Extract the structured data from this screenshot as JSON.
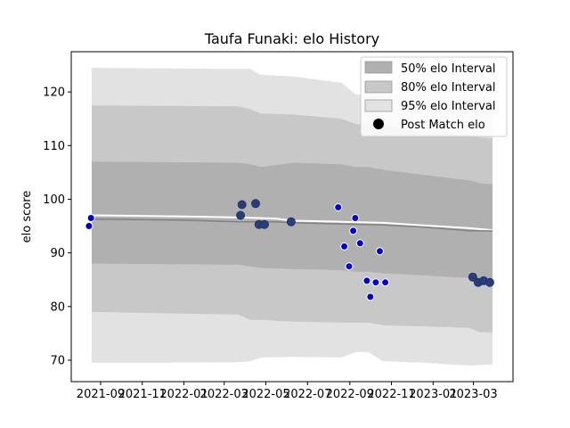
{
  "chart_data": {
    "type": "line",
    "title": "Taufa Funaki: elo History",
    "xlabel": "",
    "ylabel": "elo score",
    "xlim": [
      "2021-07-20",
      "2023-04-28"
    ],
    "ylim": [
      66,
      127.5
    ],
    "grid": false,
    "legend_position": "top-right",
    "x_ticks": [
      "2021-09",
      "2021-11",
      "2022-01",
      "2022-03",
      "2022-05",
      "2022-07",
      "2022-09",
      "2022-11",
      "2023-01",
      "2023-03"
    ],
    "x_tick_dates": [
      "2021-09-01",
      "2021-11-01",
      "2022-01-01",
      "2022-03-01",
      "2022-05-01",
      "2022-07-01",
      "2022-09-01",
      "2022-11-01",
      "2023-01-01",
      "2023-03-01"
    ],
    "y_ticks": [
      70,
      80,
      90,
      100,
      110,
      120
    ],
    "legend": [
      {
        "label": "50% elo Interval",
        "color": "#b0b0b0",
        "kind": "patch"
      },
      {
        "label": "80% elo Interval",
        "color": "#c8c8c8",
        "kind": "patch"
      },
      {
        "label": "95% elo Interval",
        "color": "#e2e2e2",
        "kind": "patch"
      },
      {
        "label": "Post Match elo",
        "color": "#000000",
        "kind": "dot"
      }
    ],
    "colors": {
      "band95": "#e2e2e2",
      "band80": "#c8c8c8",
      "band50": "#b0b0b0",
      "prior_line": "#ffffff",
      "mean_line": "#808080",
      "point_fill": "#0000cc",
      "point_fill_dark": "#2a3d7a",
      "point_edge": "#ffffff"
    },
    "band_x": [
      "2021-08-19",
      "2022-03-22",
      "2022-04-08",
      "2022-04-24",
      "2022-06-10",
      "2022-08-20",
      "2022-09-10",
      "2022-09-28",
      "2022-10-20",
      "2022-12-20",
      "2023-02-24",
      "2023-03-10",
      "2023-03-29"
    ],
    "band95": {
      "upper": [
        124.5,
        124.3,
        124.3,
        123.2,
        122.9,
        121.7,
        119.5,
        119.5,
        119.5,
        119.5,
        119.3,
        119.2,
        119.2
      ],
      "lower": [
        69.5,
        69.6,
        69.8,
        70.5,
        70.6,
        70.5,
        71.5,
        71.5,
        69.8,
        69.5,
        69.0,
        69.1,
        69.2
      ]
    },
    "band80": {
      "upper": [
        117.5,
        117.3,
        116.8,
        116.0,
        115.8,
        115.0,
        114.0,
        114.0,
        113.8,
        112.5,
        112.0,
        111.5,
        111.4
      ],
      "lower": [
        79.0,
        78.5,
        77.5,
        77.5,
        77.2,
        77.0,
        77.0,
        77.0,
        76.5,
        76.3,
        76.0,
        75.2,
        75.2
      ]
    },
    "band50": {
      "upper": [
        107.0,
        106.8,
        106.5,
        106.0,
        106.8,
        106.5,
        106.0,
        106.0,
        105.5,
        104.5,
        103.5,
        103.0,
        102.8
      ],
      "lower": [
        88.0,
        87.8,
        87.5,
        87.2,
        87.0,
        86.8,
        86.5,
        86.5,
        86.2,
        85.8,
        85.3,
        84.8,
        84.8
      ]
    },
    "series": [
      {
        "kind": "line",
        "color_key": "prior_line",
        "x": [
          "2021-08-19",
          "2022-01-01",
          "2022-03-22",
          "2022-05-15",
          "2022-06-10",
          "2022-08-20",
          "2022-10-20",
          "2022-12-20",
          "2023-02-24",
          "2023-03-29"
        ],
        "y": [
          97.0,
          96.8,
          96.6,
          96.4,
          96.0,
          95.8,
          95.6,
          95.1,
          94.6,
          94.2
        ]
      },
      {
        "kind": "line",
        "color_key": "mean_line",
        "x": [
          "2021-08-19",
          "2022-01-01",
          "2022-03-22",
          "2022-05-15",
          "2022-06-10",
          "2022-08-20",
          "2022-10-20",
          "2022-12-20",
          "2023-02-24",
          "2023-03-29"
        ],
        "y": [
          96.3,
          96.1,
          95.8,
          95.8,
          95.6,
          95.4,
          95.2,
          94.8,
          94.1,
          94.1
        ]
      },
      {
        "kind": "scatter",
        "name": "Post Match elo",
        "points": [
          {
            "x": "2021-08-15",
            "y": 95.0,
            "dark": false
          },
          {
            "x": "2021-08-18",
            "y": 96.5,
            "dark": false
          },
          {
            "x": "2022-03-25",
            "y": 97.0,
            "dark": true
          },
          {
            "x": "2022-03-27",
            "y": 99.0,
            "dark": true
          },
          {
            "x": "2022-04-16",
            "y": 99.2,
            "dark": true
          },
          {
            "x": "2022-04-21",
            "y": 95.3,
            "dark": true
          },
          {
            "x": "2022-04-29",
            "y": 95.3,
            "dark": true
          },
          {
            "x": "2022-06-07",
            "y": 95.8,
            "dark": true
          },
          {
            "x": "2022-08-15",
            "y": 98.5,
            "dark": false
          },
          {
            "x": "2022-08-24",
            "y": 91.2,
            "dark": false
          },
          {
            "x": "2022-08-31",
            "y": 87.5,
            "dark": false
          },
          {
            "x": "2022-09-06",
            "y": 94.1,
            "dark": false
          },
          {
            "x": "2022-09-09",
            "y": 96.5,
            "dark": false
          },
          {
            "x": "2022-09-16",
            "y": 91.8,
            "dark": false
          },
          {
            "x": "2022-09-26",
            "y": 84.8,
            "dark": false
          },
          {
            "x": "2022-10-01",
            "y": 81.8,
            "dark": false
          },
          {
            "x": "2022-10-09",
            "y": 84.5,
            "dark": false
          },
          {
            "x": "2022-10-15",
            "y": 90.3,
            "dark": false
          },
          {
            "x": "2022-10-23",
            "y": 84.5,
            "dark": false
          },
          {
            "x": "2023-02-28",
            "y": 85.5,
            "dark": true
          },
          {
            "x": "2023-03-08",
            "y": 84.5,
            "dark": true
          },
          {
            "x": "2023-03-16",
            "y": 84.8,
            "dark": true
          },
          {
            "x": "2023-03-25",
            "y": 84.5,
            "dark": true
          }
        ]
      }
    ]
  }
}
